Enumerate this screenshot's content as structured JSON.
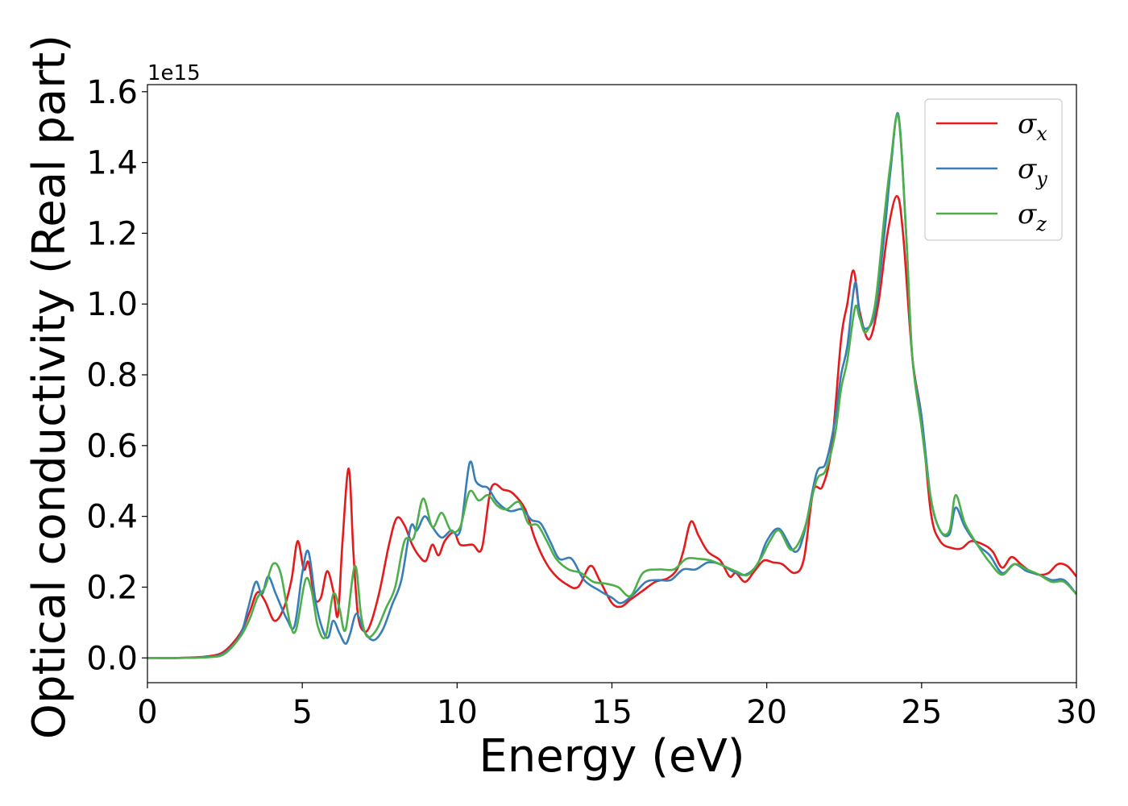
{
  "chart_data": {
    "type": "line",
    "xlabel": "Energy (eV)",
    "ylabel": "Optical conductivity (Real part)",
    "y_offset_text": "1e15",
    "xlim": [
      0,
      30
    ],
    "ylim": [
      -0.07,
      1.62
    ],
    "xticks": [
      0,
      5,
      10,
      15,
      20,
      25,
      30
    ],
    "xtick_labels": [
      "0",
      "5",
      "10",
      "15",
      "20",
      "25",
      "30"
    ],
    "yticks": [
      0.0,
      0.2,
      0.4,
      0.6,
      0.8,
      1.0,
      1.2,
      1.4,
      1.6
    ],
    "ytick_labels": [
      "0.0",
      "0.2",
      "0.4",
      "0.6",
      "0.8",
      "1.0",
      "1.2",
      "1.4",
      "1.6"
    ],
    "grid": false,
    "legend": "top-right",
    "series": [
      {
        "name": "σx",
        "name_base": "σ",
        "name_sub": "x",
        "color": "#e41a1c",
        "points": [
          [
            0,
            0
          ],
          [
            1,
            0
          ],
          [
            2,
            0.005
          ],
          [
            2.5,
            0.02
          ],
          [
            3,
            0.07
          ],
          [
            3.3,
            0.13
          ],
          [
            3.55,
            0.185
          ],
          [
            3.8,
            0.16
          ],
          [
            4.1,
            0.105
          ],
          [
            4.4,
            0.14
          ],
          [
            4.65,
            0.22
          ],
          [
            4.85,
            0.33
          ],
          [
            5.05,
            0.25
          ],
          [
            5.2,
            0.27
          ],
          [
            5.4,
            0.17
          ],
          [
            5.6,
            0.17
          ],
          [
            5.8,
            0.245
          ],
          [
            6.0,
            0.19
          ],
          [
            6.15,
            0.12
          ],
          [
            6.3,
            0.33
          ],
          [
            6.5,
            0.535
          ],
          [
            6.65,
            0.3
          ],
          [
            6.8,
            0.12
          ],
          [
            7.0,
            0.075
          ],
          [
            7.2,
            0.095
          ],
          [
            7.5,
            0.19
          ],
          [
            7.8,
            0.32
          ],
          [
            8.05,
            0.395
          ],
          [
            8.3,
            0.375
          ],
          [
            8.55,
            0.32
          ],
          [
            8.8,
            0.285
          ],
          [
            9.0,
            0.275
          ],
          [
            9.2,
            0.32
          ],
          [
            9.4,
            0.29
          ],
          [
            9.6,
            0.33
          ],
          [
            9.9,
            0.355
          ],
          [
            10.1,
            0.32
          ],
          [
            10.5,
            0.32
          ],
          [
            10.8,
            0.31
          ],
          [
            11.1,
            0.48
          ],
          [
            11.5,
            0.475
          ],
          [
            11.8,
            0.465
          ],
          [
            12.2,
            0.42
          ],
          [
            12.5,
            0.34
          ],
          [
            12.8,
            0.28
          ],
          [
            13.1,
            0.24
          ],
          [
            13.5,
            0.21
          ],
          [
            13.9,
            0.2
          ],
          [
            14.3,
            0.26
          ],
          [
            14.6,
            0.22
          ],
          [
            15.0,
            0.155
          ],
          [
            15.3,
            0.145
          ],
          [
            15.6,
            0.165
          ],
          [
            16.0,
            0.19
          ],
          [
            16.4,
            0.215
          ],
          [
            16.8,
            0.225
          ],
          [
            17.1,
            0.25
          ],
          [
            17.3,
            0.3
          ],
          [
            17.55,
            0.385
          ],
          [
            17.8,
            0.345
          ],
          [
            18.1,
            0.3
          ],
          [
            18.5,
            0.275
          ],
          [
            18.8,
            0.23
          ],
          [
            19.0,
            0.24
          ],
          [
            19.3,
            0.215
          ],
          [
            19.6,
            0.245
          ],
          [
            19.9,
            0.275
          ],
          [
            20.2,
            0.27
          ],
          [
            20.5,
            0.265
          ],
          [
            20.9,
            0.24
          ],
          [
            21.2,
            0.28
          ],
          [
            21.5,
            0.47
          ],
          [
            21.8,
            0.485
          ],
          [
            22.1,
            0.6
          ],
          [
            22.4,
            0.9
          ],
          [
            22.6,
            1.0
          ],
          [
            22.8,
            1.095
          ],
          [
            23.0,
            0.98
          ],
          [
            23.3,
            0.9
          ],
          [
            23.6,
            1.0
          ],
          [
            23.9,
            1.2
          ],
          [
            24.2,
            1.305
          ],
          [
            24.4,
            1.2
          ],
          [
            24.7,
            0.85
          ],
          [
            25.0,
            0.68
          ],
          [
            25.3,
            0.41
          ],
          [
            25.6,
            0.33
          ],
          [
            26.0,
            0.31
          ],
          [
            26.3,
            0.31
          ],
          [
            26.6,
            0.33
          ],
          [
            27.0,
            0.32
          ],
          [
            27.3,
            0.3
          ],
          [
            27.6,
            0.255
          ],
          [
            27.9,
            0.285
          ],
          [
            28.2,
            0.265
          ],
          [
            28.5,
            0.245
          ],
          [
            28.8,
            0.235
          ],
          [
            29.1,
            0.24
          ],
          [
            29.4,
            0.265
          ],
          [
            29.7,
            0.26
          ],
          [
            30,
            0.23
          ]
        ]
      },
      {
        "name": "σy",
        "name_base": "σ",
        "name_sub": "y",
        "color": "#377eb8",
        "points": [
          [
            0,
            0
          ],
          [
            1,
            0
          ],
          [
            2,
            0.003
          ],
          [
            2.5,
            0.015
          ],
          [
            3,
            0.065
          ],
          [
            3.25,
            0.14
          ],
          [
            3.5,
            0.215
          ],
          [
            3.7,
            0.18
          ],
          [
            3.9,
            0.23
          ],
          [
            4.15,
            0.18
          ],
          [
            4.5,
            0.11
          ],
          [
            4.75,
            0.09
          ],
          [
            5.0,
            0.24
          ],
          [
            5.2,
            0.3
          ],
          [
            5.45,
            0.15
          ],
          [
            5.7,
            0.07
          ],
          [
            5.85,
            0.06
          ],
          [
            6.0,
            0.105
          ],
          [
            6.2,
            0.07
          ],
          [
            6.4,
            0.04
          ],
          [
            6.55,
            0.07
          ],
          [
            6.75,
            0.125
          ],
          [
            7.0,
            0.075
          ],
          [
            7.3,
            0.05
          ],
          [
            7.6,
            0.08
          ],
          [
            7.9,
            0.15
          ],
          [
            8.2,
            0.22
          ],
          [
            8.5,
            0.37
          ],
          [
            8.7,
            0.36
          ],
          [
            8.95,
            0.4
          ],
          [
            9.2,
            0.37
          ],
          [
            9.5,
            0.34
          ],
          [
            9.8,
            0.36
          ],
          [
            10.1,
            0.36
          ],
          [
            10.4,
            0.55
          ],
          [
            10.6,
            0.5
          ],
          [
            10.8,
            0.485
          ],
          [
            11.0,
            0.48
          ],
          [
            11.3,
            0.44
          ],
          [
            11.7,
            0.415
          ],
          [
            12.1,
            0.42
          ],
          [
            12.4,
            0.39
          ],
          [
            12.7,
            0.38
          ],
          [
            13.0,
            0.33
          ],
          [
            13.3,
            0.28
          ],
          [
            13.7,
            0.28
          ],
          [
            14.1,
            0.22
          ],
          [
            14.6,
            0.19
          ],
          [
            15.0,
            0.17
          ],
          [
            15.3,
            0.155
          ],
          [
            15.7,
            0.18
          ],
          [
            16.1,
            0.215
          ],
          [
            16.5,
            0.22
          ],
          [
            16.9,
            0.22
          ],
          [
            17.3,
            0.25
          ],
          [
            17.7,
            0.25
          ],
          [
            18.1,
            0.27
          ],
          [
            18.5,
            0.265
          ],
          [
            18.9,
            0.245
          ],
          [
            19.3,
            0.235
          ],
          [
            19.7,
            0.265
          ],
          [
            20.0,
            0.33
          ],
          [
            20.4,
            0.365
          ],
          [
            20.9,
            0.3
          ],
          [
            21.2,
            0.35
          ],
          [
            21.6,
            0.52
          ],
          [
            21.9,
            0.55
          ],
          [
            22.2,
            0.67
          ],
          [
            22.4,
            0.8
          ],
          [
            22.6,
            0.88
          ],
          [
            22.85,
            1.06
          ],
          [
            23.0,
            0.97
          ],
          [
            23.2,
            0.93
          ],
          [
            23.5,
            0.98
          ],
          [
            23.8,
            1.2
          ],
          [
            24.0,
            1.38
          ],
          [
            24.25,
            1.535
          ],
          [
            24.5,
            1.2
          ],
          [
            24.7,
            0.85
          ],
          [
            25.0,
            0.68
          ],
          [
            25.3,
            0.45
          ],
          [
            25.6,
            0.36
          ],
          [
            25.9,
            0.35
          ],
          [
            26.1,
            0.425
          ],
          [
            26.4,
            0.37
          ],
          [
            26.8,
            0.32
          ],
          [
            27.2,
            0.29
          ],
          [
            27.6,
            0.24
          ],
          [
            28.0,
            0.265
          ],
          [
            28.4,
            0.245
          ],
          [
            28.8,
            0.235
          ],
          [
            29.2,
            0.22
          ],
          [
            29.6,
            0.22
          ],
          [
            30,
            0.18
          ]
        ]
      },
      {
        "name": "σz",
        "name_base": "σ",
        "name_sub": "z",
        "color": "#4daf4a",
        "points": [
          [
            0,
            0
          ],
          [
            1,
            0
          ],
          [
            2,
            0.002
          ],
          [
            2.5,
            0.012
          ],
          [
            3,
            0.06
          ],
          [
            3.3,
            0.11
          ],
          [
            3.55,
            0.17
          ],
          [
            3.8,
            0.2
          ],
          [
            4.05,
            0.265
          ],
          [
            4.3,
            0.24
          ],
          [
            4.6,
            0.1
          ],
          [
            4.8,
            0.08
          ],
          [
            5.1,
            0.22
          ],
          [
            5.3,
            0.19
          ],
          [
            5.5,
            0.09
          ],
          [
            5.75,
            0.06
          ],
          [
            6.0,
            0.18
          ],
          [
            6.2,
            0.14
          ],
          [
            6.4,
            0.08
          ],
          [
            6.7,
            0.26
          ],
          [
            6.9,
            0.12
          ],
          [
            7.1,
            0.06
          ],
          [
            7.4,
            0.08
          ],
          [
            7.7,
            0.14
          ],
          [
            8.0,
            0.2
          ],
          [
            8.3,
            0.33
          ],
          [
            8.6,
            0.34
          ],
          [
            8.9,
            0.45
          ],
          [
            9.2,
            0.37
          ],
          [
            9.5,
            0.41
          ],
          [
            9.8,
            0.36
          ],
          [
            10.1,
            0.37
          ],
          [
            10.4,
            0.47
          ],
          [
            10.7,
            0.445
          ],
          [
            11.0,
            0.46
          ],
          [
            11.3,
            0.43
          ],
          [
            11.6,
            0.42
          ],
          [
            12.0,
            0.44
          ],
          [
            12.3,
            0.38
          ],
          [
            12.6,
            0.375
          ],
          [
            12.9,
            0.33
          ],
          [
            13.2,
            0.28
          ],
          [
            13.6,
            0.25
          ],
          [
            14.0,
            0.24
          ],
          [
            14.4,
            0.215
          ],
          [
            14.8,
            0.21
          ],
          [
            15.2,
            0.2
          ],
          [
            15.6,
            0.175
          ],
          [
            16.0,
            0.24
          ],
          [
            16.5,
            0.25
          ],
          [
            17.0,
            0.25
          ],
          [
            17.4,
            0.28
          ],
          [
            17.8,
            0.28
          ],
          [
            18.2,
            0.275
          ],
          [
            18.6,
            0.26
          ],
          [
            19.0,
            0.245
          ],
          [
            19.4,
            0.235
          ],
          [
            19.8,
            0.28
          ],
          [
            20.1,
            0.33
          ],
          [
            20.4,
            0.36
          ],
          [
            20.8,
            0.305
          ],
          [
            21.2,
            0.36
          ],
          [
            21.6,
            0.5
          ],
          [
            21.9,
            0.53
          ],
          [
            22.2,
            0.63
          ],
          [
            22.4,
            0.76
          ],
          [
            22.6,
            0.84
          ],
          [
            22.85,
            0.99
          ],
          [
            23.0,
            0.96
          ],
          [
            23.2,
            0.92
          ],
          [
            23.5,
            1.0
          ],
          [
            23.8,
            1.25
          ],
          [
            24.0,
            1.4
          ],
          [
            24.25,
            1.53
          ],
          [
            24.5,
            1.2
          ],
          [
            24.7,
            0.85
          ],
          [
            25.0,
            0.65
          ],
          [
            25.3,
            0.45
          ],
          [
            25.6,
            0.36
          ],
          [
            25.9,
            0.36
          ],
          [
            26.1,
            0.46
          ],
          [
            26.4,
            0.38
          ],
          [
            26.8,
            0.32
          ],
          [
            27.2,
            0.27
          ],
          [
            27.6,
            0.235
          ],
          [
            28.0,
            0.265
          ],
          [
            28.4,
            0.25
          ],
          [
            28.8,
            0.235
          ],
          [
            29.2,
            0.215
          ],
          [
            29.6,
            0.215
          ],
          [
            30,
            0.18
          ]
        ]
      }
    ]
  }
}
